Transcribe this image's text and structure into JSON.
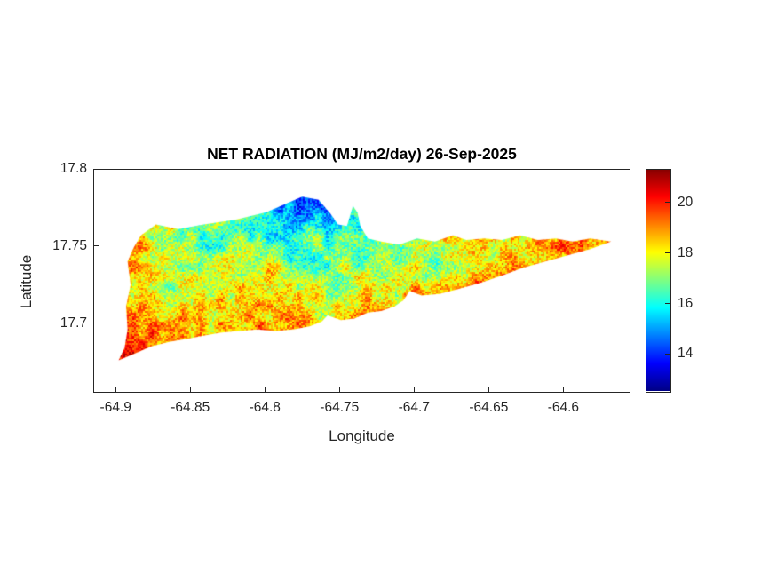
{
  "chart_data": {
    "type": "heatmap",
    "title": "NET RADIATION (MJ/m2/day) 26-Sep-2025",
    "xlabel": "Longitude",
    "ylabel": "Latitude",
    "xlim": [
      -64.915,
      -64.555
    ],
    "ylim": [
      17.655,
      17.8
    ],
    "x_ticks": [
      -64.9,
      -64.85,
      -64.8,
      -64.75,
      -64.7,
      -64.65,
      -64.6
    ],
    "x_tick_labels": [
      "-64.9",
      "-64.85",
      "-64.8",
      "-64.75",
      "-64.7",
      "-64.65",
      "-64.6"
    ],
    "y_ticks": [
      17.8,
      17.75,
      17.7
    ],
    "y_tick_labels": [
      "17.8",
      "17.75",
      "17.7"
    ],
    "grid_on": false,
    "colorbar": {
      "position": "right",
      "ticks": [
        14,
        16,
        18,
        20
      ],
      "tick_labels": [
        "14",
        "16",
        "18",
        "20"
      ],
      "range": [
        12.5,
        21.3
      ],
      "colormap": "jet",
      "stops": [
        [
          0.0,
          [
            0,
            0,
            132
          ]
        ],
        [
          0.125,
          [
            0,
            0,
            255
          ]
        ],
        [
          0.375,
          [
            0,
            255,
            255
          ]
        ],
        [
          0.625,
          [
            255,
            255,
            0
          ]
        ],
        [
          0.875,
          [
            255,
            0,
            0
          ]
        ],
        [
          1.0,
          [
            132,
            0,
            0
          ]
        ]
      ]
    },
    "island_outline": [
      [
        -64.898,
        17.676
      ],
      [
        -64.894,
        17.684
      ],
      [
        -64.892,
        17.696
      ],
      [
        -64.893,
        17.711
      ],
      [
        -64.89,
        17.725
      ],
      [
        -64.892,
        17.74
      ],
      [
        -64.888,
        17.749
      ],
      [
        -64.883,
        17.757
      ],
      [
        -64.873,
        17.764
      ],
      [
        -64.858,
        17.761
      ],
      [
        -64.841,
        17.764
      ],
      [
        -64.82,
        17.767
      ],
      [
        -64.799,
        17.772
      ],
      [
        -64.787,
        17.777
      ],
      [
        -64.775,
        17.782
      ],
      [
        -64.764,
        17.78
      ],
      [
        -64.756,
        17.771
      ],
      [
        -64.751,
        17.764
      ],
      [
        -64.745,
        17.763
      ],
      [
        -64.741,
        17.776
      ],
      [
        -64.738,
        17.772
      ],
      [
        -64.736,
        17.763
      ],
      [
        -64.731,
        17.755
      ],
      [
        -64.722,
        17.753
      ],
      [
        -64.71,
        17.751
      ],
      [
        -64.698,
        17.755
      ],
      [
        -64.686,
        17.753
      ],
      [
        -64.674,
        17.757
      ],
      [
        -64.665,
        17.754
      ],
      [
        -64.653,
        17.755
      ],
      [
        -64.641,
        17.754
      ],
      [
        -64.629,
        17.757
      ],
      [
        -64.617,
        17.754
      ],
      [
        -64.605,
        17.755
      ],
      [
        -64.594,
        17.753
      ],
      [
        -64.582,
        17.755
      ],
      [
        -64.568,
        17.753
      ],
      [
        -64.582,
        17.748
      ],
      [
        -64.597,
        17.744
      ],
      [
        -64.612,
        17.74
      ],
      [
        -64.627,
        17.736
      ],
      [
        -64.641,
        17.731
      ],
      [
        -64.656,
        17.726
      ],
      [
        -64.671,
        17.722
      ],
      [
        -64.683,
        17.719
      ],
      [
        -64.695,
        17.718
      ],
      [
        -64.703,
        17.721
      ],
      [
        -64.707,
        17.715
      ],
      [
        -64.713,
        17.711
      ],
      [
        -64.722,
        17.708
      ],
      [
        -64.731,
        17.707
      ],
      [
        -64.74,
        17.703
      ],
      [
        -64.749,
        17.702
      ],
      [
        -64.758,
        17.705
      ],
      [
        -64.762,
        17.701
      ],
      [
        -64.77,
        17.698
      ],
      [
        -64.781,
        17.696
      ],
      [
        -64.793,
        17.695
      ],
      [
        -64.805,
        17.696
      ],
      [
        -64.817,
        17.695
      ],
      [
        -64.829,
        17.694
      ],
      [
        -64.841,
        17.692
      ],
      [
        -64.852,
        17.69
      ],
      [
        -64.864,
        17.688
      ],
      [
        -64.876,
        17.685
      ],
      [
        -64.888,
        17.68
      ]
    ],
    "grid": {
      "lon": [
        -64.91,
        -64.885,
        -64.86,
        -64.835,
        -64.81,
        -64.785,
        -64.76,
        -64.735,
        -64.71,
        -64.685,
        -64.66,
        -64.635,
        -64.61,
        -64.585,
        -64.56
      ],
      "lat": [
        17.66,
        17.68,
        17.7,
        17.72,
        17.74,
        17.76,
        17.78,
        17.8
      ],
      "values": [
        [
          20,
          20,
          20,
          19.5,
          19.5,
          19.5,
          19.5,
          19.5,
          19.5,
          19.5,
          19.5,
          19.5,
          19.5,
          19.5,
          19.5
        ],
        [
          20,
          20,
          19.5,
          19,
          19.5,
          19.5,
          19,
          19.5,
          19.5,
          19.5,
          19.5,
          19.5,
          19.5,
          19.5,
          19.5
        ],
        [
          20,
          19.5,
          18.5,
          18.5,
          19.2,
          19.2,
          18.5,
          19,
          19,
          19.3,
          19.3,
          19.5,
          19.5,
          19.5,
          19.5
        ],
        [
          19.5,
          18.5,
          17.5,
          17.5,
          18.8,
          18.3,
          17.5,
          17.8,
          18,
          18.5,
          19,
          19.3,
          19.5,
          19.5,
          19.5
        ],
        [
          19.5,
          18.5,
          16.8,
          17,
          17.5,
          17,
          16.5,
          17,
          16.9,
          16.8,
          18,
          18.5,
          19,
          19.3,
          19.5
        ],
        [
          19,
          18.5,
          17,
          16.5,
          16.5,
          16,
          16,
          16.5,
          17.5,
          18.3,
          18.3,
          18.5,
          19,
          18.5,
          19
        ],
        [
          18.5,
          18,
          17.5,
          17,
          16.5,
          14.5,
          13.8,
          16.5,
          17.5,
          18,
          18.5,
          18.5,
          18.5,
          19,
          19
        ],
        [
          18,
          18,
          17.5,
          17.5,
          16.5,
          14,
          13.5,
          16,
          17.5,
          18,
          18.5,
          18.5,
          18.5,
          19,
          19
        ]
      ]
    },
    "texture": {
      "fine_scale": 2,
      "fine_amp": 0.85,
      "med_scale": 11,
      "med_amp": 0.9,
      "coarse_scale": 28,
      "coarse_amp": 0.55,
      "seed": 7
    }
  }
}
